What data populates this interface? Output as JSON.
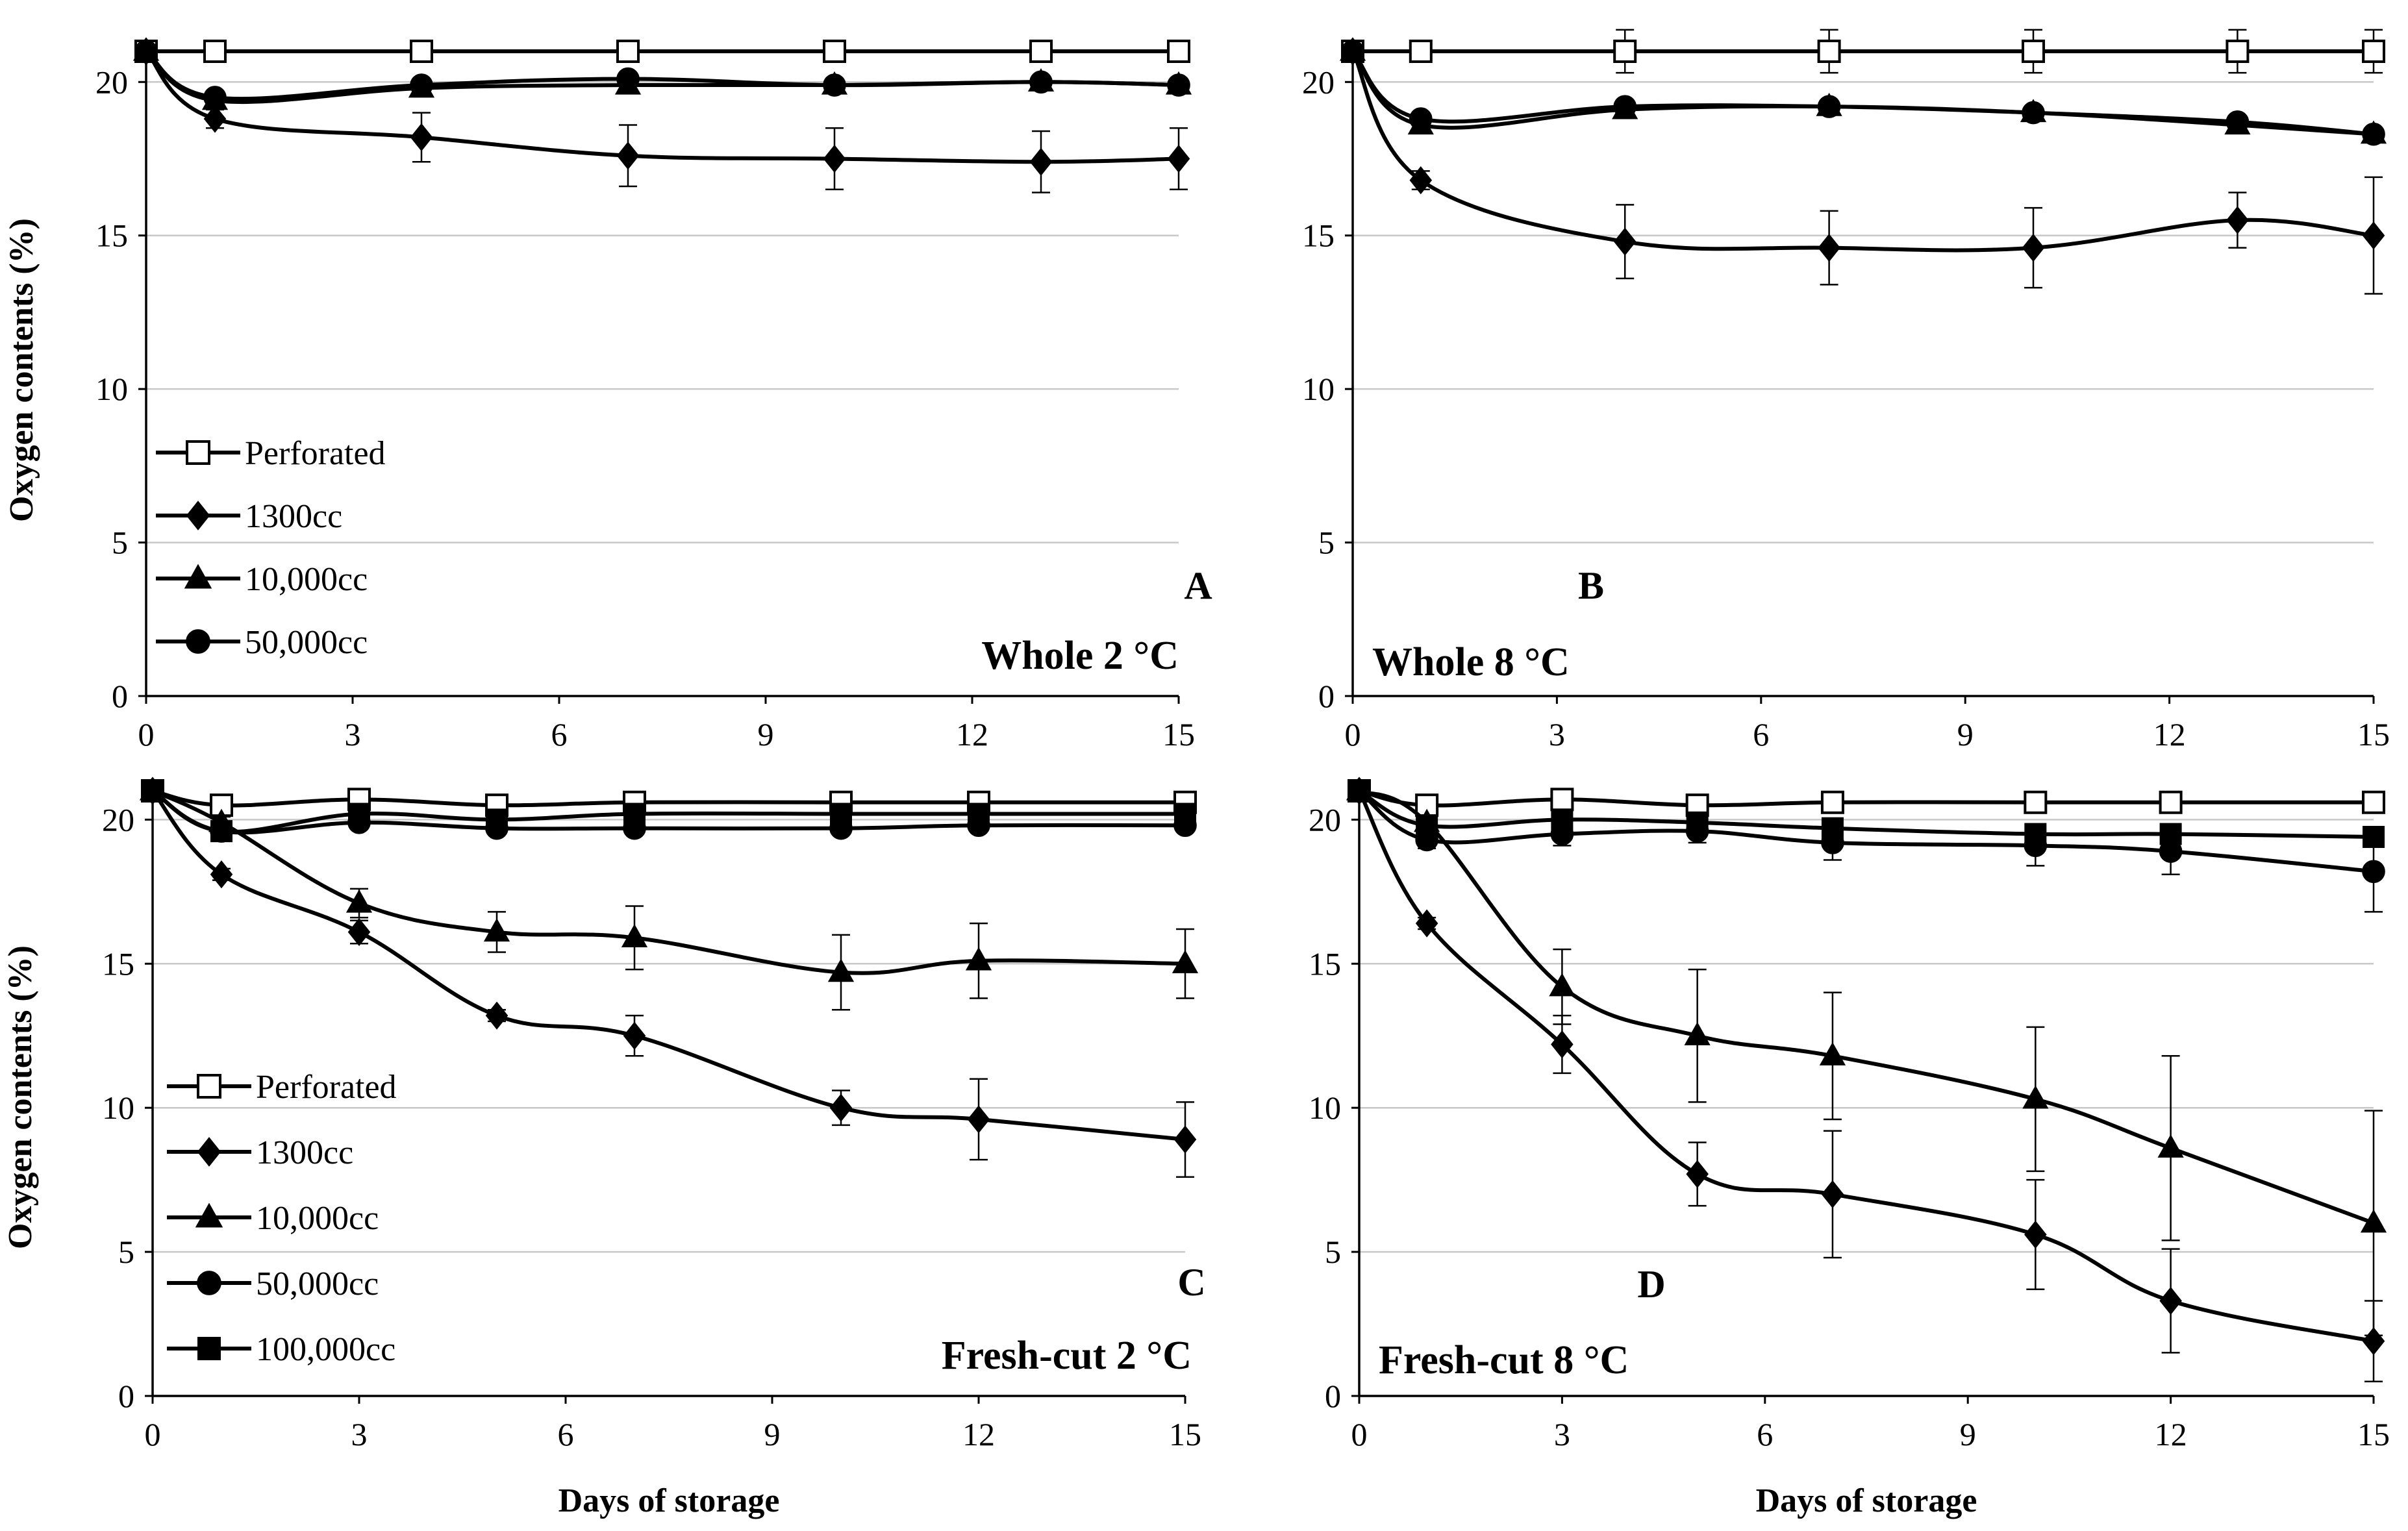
{
  "chart_data": [
    {
      "type": "line",
      "panel": "A",
      "condition": "Whole 2 °C",
      "ylabel": "Oxygen contents (%)",
      "xlabel": "",
      "xlim": [
        0,
        15
      ],
      "ylim": [
        0,
        21
      ],
      "xticks": [
        0,
        3,
        6,
        9,
        12,
        15
      ],
      "yticks": [
        0,
        5,
        10,
        15,
        20
      ],
      "grid": true,
      "legend": [
        "Perforated",
        "1300cc",
        "10,000cc",
        "50,000cc"
      ],
      "legend_position": "bottom-left",
      "series": [
        {
          "name": "Perforated",
          "marker": "square-open",
          "x": [
            0,
            1,
            4,
            7,
            10,
            13,
            15
          ],
          "values": [
            21.0,
            21.0,
            21.0,
            21.0,
            21.0,
            21.0,
            21.0
          ],
          "errors": [
            0,
            0,
            0.3,
            0.3,
            0.3,
            0.3,
            0.3
          ]
        },
        {
          "name": "1300cc",
          "marker": "diamond",
          "x": [
            0,
            1,
            4,
            7,
            10,
            13,
            15
          ],
          "values": [
            21.0,
            18.8,
            18.2,
            17.6,
            17.5,
            17.4,
            17.5
          ],
          "errors": [
            0,
            0.3,
            0.8,
            1.0,
            1.0,
            1.0,
            1.0
          ]
        },
        {
          "name": "10,000cc",
          "marker": "triangle",
          "x": [
            0,
            1,
            4,
            7,
            10,
            13,
            15
          ],
          "values": [
            21.0,
            19.4,
            19.8,
            19.9,
            19.9,
            20.0,
            19.9
          ],
          "errors": [
            0,
            0.2,
            0.2,
            0.2,
            0.2,
            0.2,
            0.2
          ]
        },
        {
          "name": "50,000cc",
          "marker": "circle",
          "x": [
            0,
            1,
            4,
            7,
            10,
            13,
            15
          ],
          "values": [
            21.0,
            19.5,
            19.9,
            20.1,
            19.9,
            20.0,
            19.9
          ],
          "errors": [
            0,
            0.2,
            0.2,
            0.2,
            0.2,
            0.2,
            0.2
          ]
        }
      ]
    },
    {
      "type": "line",
      "panel": "B",
      "condition": "Whole 8 °C",
      "ylabel": "",
      "xlabel": "",
      "xlim": [
        0,
        15
      ],
      "ylim": [
        0,
        21
      ],
      "xticks": [
        0,
        3,
        6,
        9,
        12,
        15
      ],
      "yticks": [
        0,
        5,
        10,
        15,
        20
      ],
      "grid": true,
      "legend": [],
      "series": [
        {
          "name": "Perforated",
          "marker": "square-open",
          "x": [
            0,
            1,
            4,
            7,
            10,
            13,
            15
          ],
          "values": [
            21.0,
            21.0,
            21.0,
            21.0,
            21.0,
            21.0,
            21.0
          ],
          "errors": [
            0,
            0,
            0.7,
            0.7,
            0.7,
            0.7,
            0.7
          ]
        },
        {
          "name": "1300cc",
          "marker": "diamond",
          "x": [
            0,
            1,
            4,
            7,
            10,
            13,
            15
          ],
          "values": [
            21.0,
            16.8,
            14.8,
            14.6,
            14.6,
            15.5,
            15.0
          ],
          "errors": [
            0,
            0.3,
            1.2,
            1.2,
            1.3,
            0.9,
            1.9
          ]
        },
        {
          "name": "10,000cc",
          "marker": "triangle",
          "x": [
            0,
            1,
            4,
            7,
            10,
            13,
            15
          ],
          "values": [
            21.0,
            18.6,
            19.1,
            19.2,
            19.0,
            18.6,
            18.3
          ],
          "errors": [
            0,
            0.2,
            0.2,
            0.2,
            0.2,
            0.2,
            0.2
          ]
        },
        {
          "name": "50,000cc",
          "marker": "circle",
          "x": [
            0,
            1,
            4,
            7,
            10,
            13,
            15
          ],
          "values": [
            21.0,
            18.8,
            19.2,
            19.2,
            19.0,
            18.7,
            18.3
          ],
          "errors": [
            0,
            0.2,
            0.2,
            0.2,
            0.2,
            0.2,
            0.2
          ]
        }
      ]
    },
    {
      "type": "line",
      "panel": "C",
      "condition": "Fresh-cut 2 °C",
      "ylabel": "Oxygen contents (%)",
      "xlabel": "Days of storage",
      "xlim": [
        0,
        15
      ],
      "ylim": [
        0,
        21
      ],
      "xticks": [
        0,
        3,
        6,
        9,
        12,
        15
      ],
      "yticks": [
        0,
        5,
        10,
        15,
        20
      ],
      "grid": true,
      "legend": [
        "Perforated",
        "1300cc",
        "10,000cc",
        "50,000cc",
        "100,000cc"
      ],
      "legend_position": "bottom-left",
      "series": [
        {
          "name": "Perforated",
          "marker": "square-open",
          "x": [
            0,
            1,
            3,
            5,
            7,
            10,
            12,
            15
          ],
          "values": [
            21.0,
            20.5,
            20.7,
            20.5,
            20.6,
            20.6,
            20.6,
            20.6
          ],
          "errors": [
            0,
            0,
            0,
            0,
            0,
            0,
            0,
            0
          ]
        },
        {
          "name": "1300cc",
          "marker": "diamond",
          "x": [
            0,
            1,
            3,
            5,
            7,
            10,
            12,
            15
          ],
          "values": [
            21.0,
            18.1,
            16.1,
            13.2,
            12.5,
            10.0,
            9.6,
            8.9
          ],
          "errors": [
            0,
            0.2,
            0.4,
            0.2,
            0.7,
            0.6,
            1.4,
            1.3
          ]
        },
        {
          "name": "10,000cc",
          "marker": "triangle",
          "x": [
            0,
            1,
            3,
            5,
            7,
            10,
            12,
            15
          ],
          "values": [
            21.0,
            19.9,
            17.1,
            16.1,
            15.9,
            14.7,
            15.1,
            15.0
          ],
          "errors": [
            0,
            0.2,
            0.5,
            0.7,
            1.1,
            1.3,
            1.3,
            1.2
          ]
        },
        {
          "name": "50,000cc",
          "marker": "circle",
          "x": [
            0,
            1,
            3,
            5,
            7,
            10,
            12,
            15
          ],
          "values": [
            21.0,
            19.6,
            19.9,
            19.7,
            19.7,
            19.7,
            19.8,
            19.8
          ],
          "errors": [
            0,
            0.2,
            0.2,
            0.2,
            0.2,
            0.2,
            0.2,
            0.2
          ]
        },
        {
          "name": "100,000cc",
          "marker": "square",
          "x": [
            0,
            1,
            3,
            5,
            7,
            10,
            12,
            15
          ],
          "values": [
            21.0,
            19.6,
            20.2,
            20.0,
            20.2,
            20.2,
            20.2,
            20.2
          ],
          "errors": [
            0,
            0,
            0,
            0,
            0,
            0,
            0,
            0
          ]
        }
      ]
    },
    {
      "type": "line",
      "panel": "D",
      "condition": "Fresh-cut 8 °C",
      "ylabel": "",
      "xlabel": "Days of storage",
      "xlim": [
        0,
        15
      ],
      "ylim": [
        0,
        21
      ],
      "xticks": [
        0,
        3,
        6,
        9,
        12,
        15
      ],
      "yticks": [
        0,
        5,
        10,
        15,
        20
      ],
      "grid": true,
      "legend": [],
      "series": [
        {
          "name": "Perforated",
          "marker": "square-open",
          "x": [
            0,
            1,
            3,
            5,
            7,
            10,
            12,
            15
          ],
          "values": [
            21.0,
            20.5,
            20.7,
            20.5,
            20.6,
            20.6,
            20.6,
            20.6
          ],
          "errors": [
            0,
            0,
            0,
            0,
            0,
            0,
            0,
            0
          ]
        },
        {
          "name": "1300cc",
          "marker": "diamond",
          "x": [
            0,
            1,
            3,
            5,
            7,
            10,
            12,
            15
          ],
          "values": [
            21.0,
            16.4,
            12.2,
            7.7,
            7.0,
            5.6,
            3.3,
            1.9
          ],
          "errors": [
            0,
            0.2,
            1.0,
            1.1,
            2.2,
            1.9,
            1.8,
            1.4
          ]
        },
        {
          "name": "10,000cc",
          "marker": "triangle",
          "x": [
            0,
            1,
            3,
            5,
            7,
            10,
            12,
            15
          ],
          "values": [
            21.0,
            19.9,
            14.2,
            12.5,
            11.8,
            10.3,
            8.6,
            6.0
          ],
          "errors": [
            0,
            0.2,
            1.3,
            2.3,
            2.2,
            2.5,
            3.2,
            3.9
          ]
        },
        {
          "name": "50,000cc",
          "marker": "circle",
          "x": [
            0,
            1,
            3,
            5,
            7,
            10,
            12,
            15
          ],
          "values": [
            21.0,
            19.3,
            19.5,
            19.6,
            19.2,
            19.1,
            18.9,
            18.2
          ],
          "errors": [
            0,
            0.3,
            0.4,
            0.4,
            0.6,
            0.7,
            0.8,
            1.4
          ]
        },
        {
          "name": "100,000cc",
          "marker": "square",
          "x": [
            0,
            1,
            3,
            5,
            7,
            10,
            12,
            15
          ],
          "values": [
            21.0,
            19.8,
            20.0,
            19.9,
            19.7,
            19.5,
            19.5,
            19.4
          ],
          "errors": [
            0,
            0,
            0,
            0,
            0,
            0,
            0,
            0
          ]
        }
      ]
    }
  ]
}
